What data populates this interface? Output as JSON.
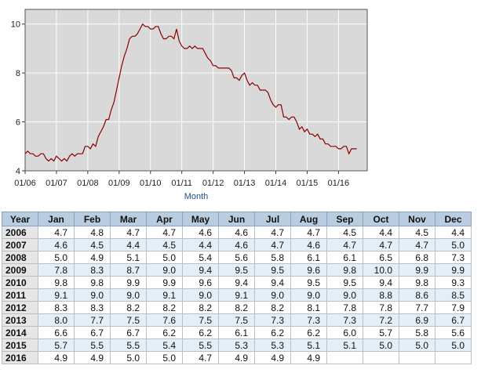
{
  "chart_data": {
    "type": "line",
    "xlabel": "Month",
    "ylabel": "",
    "ylim": [
      4,
      10.6
    ],
    "yticks": [
      4,
      6,
      8,
      10
    ],
    "xticks": [
      "01/06",
      "01/07",
      "01/08",
      "01/09",
      "01/10",
      "01/11",
      "01/12",
      "01/13",
      "01/14",
      "01/15",
      "01/16"
    ],
    "grid": true,
    "colors": {
      "line": "#8b0000",
      "plot_bg": "#d9d9d9",
      "grid": "#ffffff"
    },
    "series": [
      {
        "values": [
          4.7,
          4.8,
          4.7,
          4.7,
          4.6,
          4.6,
          4.7,
          4.7,
          4.5,
          4.4,
          4.5,
          4.4,
          4.6,
          4.5,
          4.4,
          4.5,
          4.4,
          4.6,
          4.7,
          4.6,
          4.7,
          4.7,
          4.7,
          5.0,
          5.0,
          4.9,
          5.1,
          5.0,
          5.4,
          5.6,
          5.8,
          6.1,
          6.1,
          6.5,
          6.8,
          7.3,
          7.8,
          8.3,
          8.7,
          9.0,
          9.4,
          9.5,
          9.5,
          9.6,
          9.8,
          10.0,
          9.9,
          9.9,
          9.8,
          9.8,
          9.9,
          9.9,
          9.6,
          9.4,
          9.4,
          9.5,
          9.5,
          9.4,
          9.8,
          9.3,
          9.1,
          9.0,
          9.0,
          9.1,
          9.0,
          9.1,
          9.0,
          9.0,
          9.0,
          8.8,
          8.6,
          8.5,
          8.3,
          8.3,
          8.2,
          8.2,
          8.2,
          8.2,
          8.2,
          8.1,
          7.8,
          7.8,
          7.7,
          7.9,
          8.0,
          7.7,
          7.5,
          7.6,
          7.5,
          7.5,
          7.3,
          7.3,
          7.3,
          7.2,
          6.9,
          6.7,
          6.6,
          6.7,
          6.7,
          6.2,
          6.2,
          6.1,
          6.2,
          6.2,
          6.0,
          5.7,
          5.8,
          5.6,
          5.7,
          5.5,
          5.5,
          5.4,
          5.5,
          5.3,
          5.3,
          5.1,
          5.1,
          5.0,
          5.0,
          5.0,
          4.9,
          4.9,
          5.0,
          5.0,
          4.7,
          4.9,
          4.9,
          4.9
        ]
      }
    ]
  },
  "table": {
    "headers": [
      "Year",
      "Jan",
      "Feb",
      "Mar",
      "Apr",
      "May",
      "Jun",
      "Jul",
      "Aug",
      "Sep",
      "Oct",
      "Nov",
      "Dec"
    ],
    "rows": [
      {
        "year": "2006",
        "values": [
          "4.7",
          "4.8",
          "4.7",
          "4.7",
          "4.6",
          "4.6",
          "4.7",
          "4.7",
          "4.5",
          "4.4",
          "4.5",
          "4.4"
        ]
      },
      {
        "year": "2007",
        "values": [
          "4.6",
          "4.5",
          "4.4",
          "4.5",
          "4.4",
          "4.6",
          "4.7",
          "4.6",
          "4.7",
          "4.7",
          "4.7",
          "5.0"
        ]
      },
      {
        "year": "2008",
        "values": [
          "5.0",
          "4.9",
          "5.1",
          "5.0",
          "5.4",
          "5.6",
          "5.8",
          "6.1",
          "6.1",
          "6.5",
          "6.8",
          "7.3"
        ]
      },
      {
        "year": "2009",
        "values": [
          "7.8",
          "8.3",
          "8.7",
          "9.0",
          "9.4",
          "9.5",
          "9.5",
          "9.6",
          "9.8",
          "10.0",
          "9.9",
          "9.9"
        ]
      },
      {
        "year": "2010",
        "values": [
          "9.8",
          "9.8",
          "9.9",
          "9.9",
          "9.6",
          "9.4",
          "9.4",
          "9.5",
          "9.5",
          "9.4",
          "9.8",
          "9.3"
        ]
      },
      {
        "year": "2011",
        "values": [
          "9.1",
          "9.0",
          "9.0",
          "9.1",
          "9.0",
          "9.1",
          "9.0",
          "9.0",
          "9.0",
          "8.8",
          "8.6",
          "8.5"
        ]
      },
      {
        "year": "2012",
        "values": [
          "8.3",
          "8.3",
          "8.2",
          "8.2",
          "8.2",
          "8.2",
          "8.2",
          "8.1",
          "7.8",
          "7.8",
          "7.7",
          "7.9"
        ]
      },
      {
        "year": "2013",
        "values": [
          "8.0",
          "7.7",
          "7.5",
          "7.6",
          "7.5",
          "7.5",
          "7.3",
          "7.3",
          "7.3",
          "7.2",
          "6.9",
          "6.7"
        ]
      },
      {
        "year": "2014",
        "values": [
          "6.6",
          "6.7",
          "6.7",
          "6.2",
          "6.2",
          "6.1",
          "6.2",
          "6.2",
          "6.0",
          "5.7",
          "5.8",
          "5.6"
        ]
      },
      {
        "year": "2015",
        "values": [
          "5.7",
          "5.5",
          "5.5",
          "5.4",
          "5.5",
          "5.3",
          "5.3",
          "5.1",
          "5.1",
          "5.0",
          "5.0",
          "5.0"
        ]
      },
      {
        "year": "2016",
        "values": [
          "4.9",
          "4.9",
          "5.0",
          "5.0",
          "4.7",
          "4.9",
          "4.9",
          "4.9",
          "",
          "",
          "",
          ""
        ]
      }
    ]
  }
}
